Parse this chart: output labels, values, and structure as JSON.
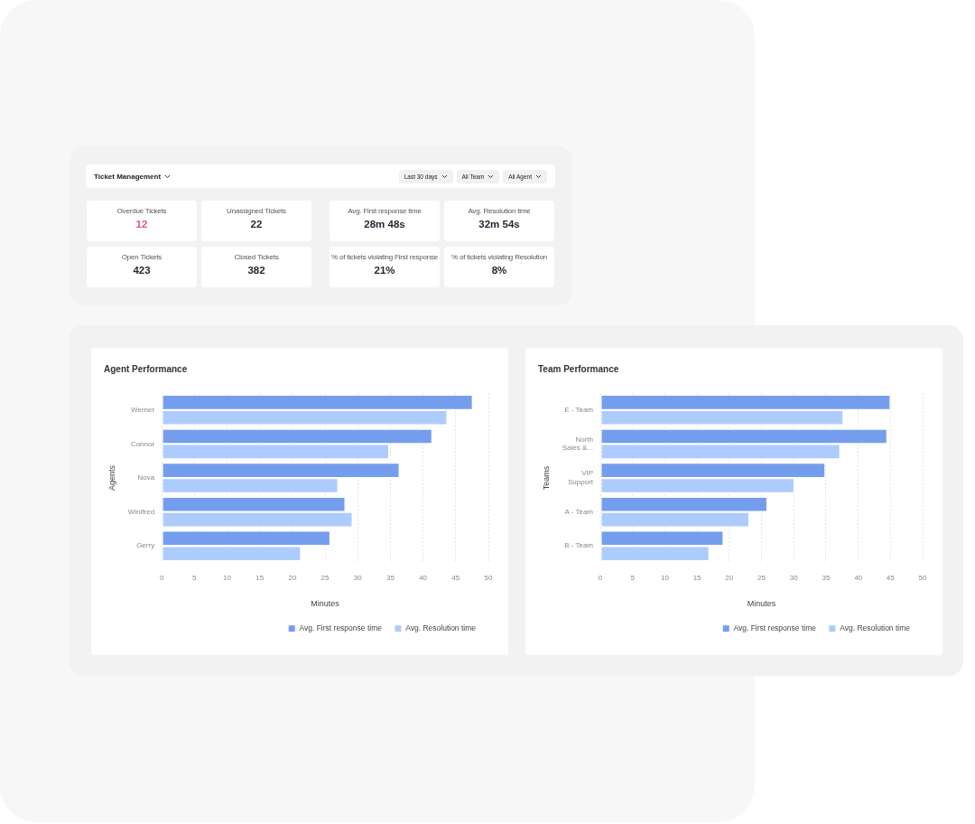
{
  "chart_data": [
    {
      "type": "other",
      "title": "Ticket Management",
      "annotations": [
        "Last 30 days",
        "All Team",
        "All Agent",
        "Overdue Tickets",
        "12",
        "Unassigned Tickets",
        "22",
        "Avg. First response time",
        "28m 48s",
        "Avg. Resolution time",
        "32m 54s",
        "Open Tickets",
        "423",
        "Closed Tickets",
        "382",
        "% of tickets violating First response",
        "21%",
        "% of tickets violating Resolution",
        "8%"
      ],
      "colors": [
        "#f0506e",
        "#1f2430",
        "#1f2430",
        "#1f2430",
        "#1f2430",
        "#1f2430",
        "#1f2430",
        "#1f2430"
      ]
    },
    {
      "type": "bar",
      "orientation": "horizontal",
      "title": "Agent Performance",
      "xlabel": "Minutes",
      "ylabel": "Agents",
      "categories": [
        "Werner",
        "Connor",
        "Nova",
        "Winifred",
        "Gerry"
      ],
      "series": [
        {
          "name": "Avg. First response time",
          "color": "#759ded",
          "values": [
            47.6,
            41.4,
            36.4,
            28.1,
            25.8
          ]
        },
        {
          "name": "Avg. Resolution time",
          "color": "#adcbfc",
          "values": [
            43.7,
            34.8,
            27.0,
            29.2,
            21.3
          ]
        }
      ],
      "xlim": [
        0,
        50
      ],
      "xticks": [
        0,
        5,
        10,
        15,
        20,
        25,
        30,
        35,
        40,
        45,
        50
      ],
      "grid": "x",
      "legend": "bottom right"
    },
    {
      "type": "bar",
      "orientation": "horizontal",
      "title": "Team Performance",
      "xlabel": "Minutes",
      "ylabel": "Teams",
      "categories": [
        "E - Team",
        "North Sales &...",
        "VIP Support",
        "A - Team",
        "B - Team"
      ],
      "series": [
        {
          "name": "Avg. First response time",
          "color": "#759ded",
          "values": [
            45.0,
            44.5,
            34.9,
            25.9,
            19.1
          ]
        },
        {
          "name": "Avg. Resolution time",
          "color": "#adcbfc",
          "values": [
            37.7,
            37.2,
            30.1,
            23.1,
            16.9
          ]
        }
      ],
      "xlim": [
        0,
        50
      ],
      "xticks": [
        0,
        5,
        10,
        15,
        20,
        25,
        30,
        35,
        40,
        45,
        50
      ],
      "grid": "x",
      "legend": "bottom right"
    }
  ]
}
